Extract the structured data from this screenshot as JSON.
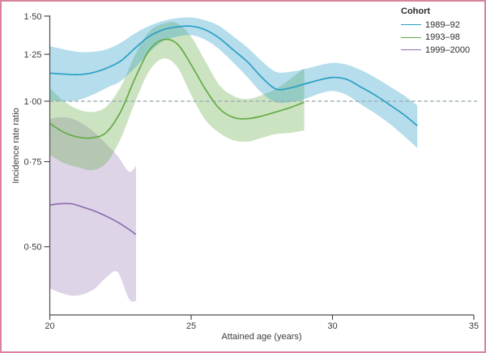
{
  "figure": {
    "frame_color": "#d9849b",
    "background_color": "#ffffff",
    "text_color": "#3b3b3b"
  },
  "chart_data": {
    "type": "line",
    "x_axis": {
      "label": "Attained age (years)",
      "range": [
        20,
        35
      ],
      "ticks": [
        {
          "value": 20,
          "label": "20"
        },
        {
          "value": 25,
          "label": "25"
        },
        {
          "value": 30,
          "label": "30"
        },
        {
          "value": 35,
          "label": "35"
        }
      ],
      "grid": false
    },
    "y_axis": {
      "label": "Incidence rate ratio",
      "scale": "log",
      "range": [
        0.36,
        1.5
      ],
      "ticks": [
        {
          "value": 1.5,
          "label": "1·50"
        },
        {
          "value": 1.25,
          "label": "1·25"
        },
        {
          "value": 1.0,
          "label": "1·00"
        },
        {
          "value": 0.75,
          "label": "0·75"
        },
        {
          "value": 0.5,
          "label": "0·50"
        }
      ],
      "grid": false
    },
    "reference_line": {
      "value": 1.0,
      "style": "dashed",
      "color": "#9fb0b5"
    },
    "legend": {
      "title": "Cohort",
      "position": "top-right"
    },
    "series": [
      {
        "name": "1989–92",
        "color": "#2a9fc6",
        "band_opacity": 0.35,
        "x": [
          20,
          20.5,
          21,
          21.5,
          22,
          22.5,
          23,
          23.5,
          24,
          24.5,
          25,
          25.5,
          26,
          26.5,
          27,
          27.5,
          28,
          28.5,
          29,
          29.5,
          30,
          30.5,
          31,
          31.5,
          32,
          32.5,
          33
        ],
        "y": [
          1.143,
          1.138,
          1.135,
          1.145,
          1.17,
          1.21,
          1.285,
          1.36,
          1.405,
          1.425,
          1.43,
          1.405,
          1.35,
          1.275,
          1.205,
          1.12,
          1.06,
          1.065,
          1.085,
          1.105,
          1.12,
          1.11,
          1.07,
          1.03,
          0.985,
          0.94,
          0.89
        ],
        "upper": [
          1.3,
          1.28,
          1.265,
          1.265,
          1.28,
          1.32,
          1.38,
          1.43,
          1.465,
          1.485,
          1.49,
          1.47,
          1.43,
          1.36,
          1.29,
          1.21,
          1.15,
          1.15,
          1.165,
          1.185,
          1.2,
          1.19,
          1.16,
          1.12,
          1.075,
          1.03,
          0.98
        ],
        "lower": [
          1.005,
          1.0,
          1.005,
          1.03,
          1.065,
          1.1,
          1.17,
          1.26,
          1.33,
          1.36,
          1.37,
          1.34,
          1.28,
          1.2,
          1.12,
          1.04,
          0.995,
          0.995,
          1.01,
          1.035,
          1.05,
          1.03,
          0.985,
          0.945,
          0.9,
          0.85,
          0.8
        ]
      },
      {
        "name": "1993–98",
        "color": "#64ab46",
        "band_opacity": 0.33,
        "x": [
          20,
          20.5,
          21,
          21.5,
          22,
          22.5,
          23,
          23.5,
          24,
          24.5,
          25,
          25.5,
          26,
          26.5,
          27,
          27.5,
          28,
          28.5,
          29
        ],
        "y": [
          0.9,
          0.862,
          0.843,
          0.84,
          0.862,
          0.95,
          1.11,
          1.27,
          1.34,
          1.315,
          1.19,
          1.06,
          0.965,
          0.925,
          0.92,
          0.932,
          0.95,
          0.97,
          0.995
        ],
        "upper": [
          1.065,
          1.0,
          0.962,
          0.95,
          0.975,
          1.07,
          1.24,
          1.39,
          1.445,
          1.45,
          1.36,
          1.21,
          1.08,
          1.025,
          1.01,
          1.03,
          1.06,
          1.11,
          1.17
        ],
        "lower": [
          0.775,
          0.745,
          0.73,
          0.72,
          0.745,
          0.835,
          0.99,
          1.15,
          1.225,
          1.18,
          1.03,
          0.915,
          0.86,
          0.83,
          0.825,
          0.84,
          0.855,
          0.86,
          0.87
        ]
      },
      {
        "name": "1999–2000",
        "color": "#8f6fb0",
        "band_opacity": 0.3,
        "x": [
          20,
          20.4,
          20.8,
          21.2,
          21.6,
          22,
          22.4,
          22.8,
          23.05
        ],
        "y": [
          0.61,
          0.614,
          0.613,
          0.603,
          0.592,
          0.578,
          0.562,
          0.543,
          0.53
        ],
        "upper": [
          0.92,
          0.927,
          0.92,
          0.895,
          0.86,
          0.815,
          0.77,
          0.715,
          0.735
        ],
        "lower": [
          0.41,
          0.401,
          0.396,
          0.399,
          0.41,
          0.432,
          0.443,
          0.39,
          0.386
        ]
      }
    ]
  }
}
